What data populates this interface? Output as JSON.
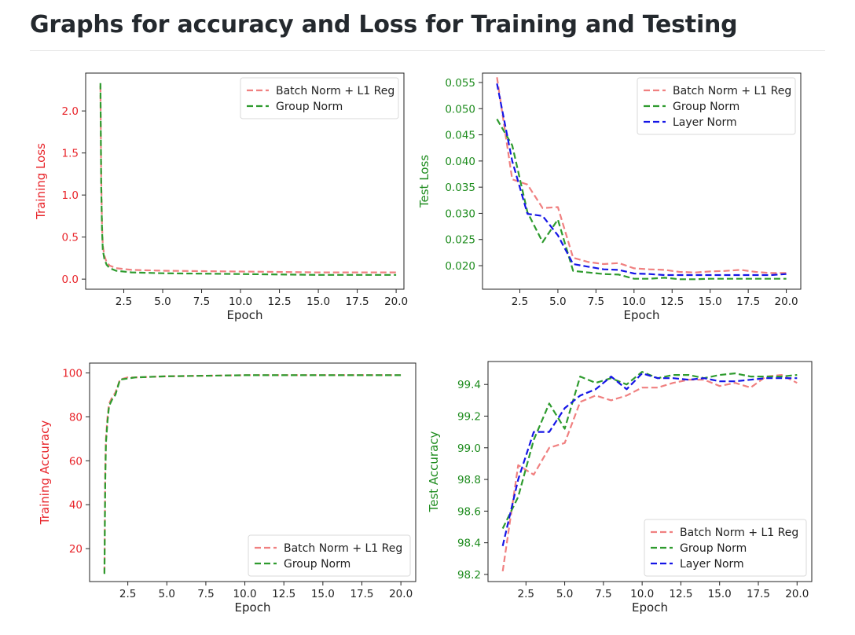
{
  "page": {
    "title": "Graphs for accuracy and Loss for Training and Testing"
  },
  "colors": {
    "batch_norm": "#f08080",
    "group_norm": "#2e9b2e",
    "layer_norm": "#1515e6",
    "train_tick": "#e8242a",
    "test_tick": "#1e8c1e"
  },
  "chart_data": [
    {
      "id": "training-loss",
      "type": "line",
      "xlabel": "Epoch",
      "ylabel": "Training Loss",
      "xlim": [
        0.05,
        20.5
      ],
      "ylim": [
        -0.12,
        2.45
      ],
      "xticks": [
        2.5,
        5.0,
        7.5,
        10.0,
        12.5,
        15.0,
        17.5,
        20.0
      ],
      "yticks": [
        0.0,
        0.5,
        1.0,
        1.5,
        2.0
      ],
      "tick_color": "#e8242a",
      "label_color": "#e8242a",
      "legend_position": "top-right",
      "series": [
        {
          "name": "Batch Norm + L1 Reg",
          "color": "#f08080",
          "x": [
            1.0,
            1.05,
            1.1,
            1.15,
            1.25,
            1.4,
            1.6,
            2.0,
            3.0,
            5.0,
            10.0,
            15.0,
            20.0
          ],
          "y": [
            2.3,
            1.2,
            0.65,
            0.4,
            0.28,
            0.2,
            0.16,
            0.13,
            0.11,
            0.1,
            0.09,
            0.08,
            0.08
          ]
        },
        {
          "name": "Group Norm",
          "color": "#2e9b2e",
          "x": [
            1.0,
            1.05,
            1.1,
            1.15,
            1.25,
            1.4,
            1.6,
            2.0,
            3.0,
            5.0,
            10.0,
            15.0,
            20.0
          ],
          "y": [
            2.33,
            1.1,
            0.6,
            0.35,
            0.24,
            0.17,
            0.13,
            0.1,
            0.08,
            0.07,
            0.06,
            0.05,
            0.05
          ]
        }
      ]
    },
    {
      "id": "test-loss",
      "type": "line",
      "xlabel": "Epoch",
      "ylabel": "Test Loss",
      "xlim": [
        0.05,
        20.95
      ],
      "ylim": [
        0.0155,
        0.0568
      ],
      "xticks": [
        2.5,
        5.0,
        7.5,
        10.0,
        12.5,
        15.0,
        17.5,
        20.0
      ],
      "yticks": [
        0.02,
        0.025,
        0.03,
        0.035,
        0.04,
        0.045,
        0.05,
        0.055
      ],
      "tick_color": "#1e8c1e",
      "label_color": "#1e8c1e",
      "legend_position": "top-right",
      "series": [
        {
          "name": "Batch Norm + L1 Reg",
          "color": "#f08080",
          "x": [
            1,
            2,
            3,
            4,
            5,
            6,
            7,
            8,
            9,
            10,
            11,
            12,
            13,
            14,
            15,
            16,
            17,
            18,
            19,
            20
          ],
          "y": [
            0.056,
            0.0365,
            0.0355,
            0.031,
            0.0312,
            0.0215,
            0.0207,
            0.0203,
            0.0205,
            0.0195,
            0.0193,
            0.0192,
            0.0188,
            0.0187,
            0.0189,
            0.019,
            0.0192,
            0.0188,
            0.0186,
            0.0186
          ]
        },
        {
          "name": "Group Norm",
          "color": "#2e9b2e",
          "x": [
            1,
            2,
            3,
            4,
            5,
            6,
            7,
            8,
            9,
            10,
            11,
            12,
            13,
            14,
            15,
            16,
            17,
            18,
            19,
            20
          ],
          "y": [
            0.048,
            0.043,
            0.0302,
            0.0245,
            0.0288,
            0.019,
            0.0187,
            0.0184,
            0.0183,
            0.0175,
            0.0175,
            0.0177,
            0.0174,
            0.0174,
            0.0175,
            0.0175,
            0.0175,
            0.0175,
            0.0175,
            0.0175
          ]
        },
        {
          "name": "Layer Norm",
          "color": "#1515e6",
          "x": [
            1,
            2,
            3,
            4,
            5,
            6,
            7,
            8,
            9,
            10,
            11,
            12,
            13,
            14,
            15,
            16,
            17,
            18,
            19,
            20
          ],
          "y": [
            0.0548,
            0.04,
            0.0299,
            0.0295,
            0.0258,
            0.0203,
            0.0198,
            0.0193,
            0.0192,
            0.0185,
            0.0184,
            0.0182,
            0.0182,
            0.0182,
            0.0182,
            0.0182,
            0.0182,
            0.0182,
            0.0182,
            0.0184
          ]
        }
      ]
    },
    {
      "id": "training-accuracy",
      "type": "line",
      "xlabel": "Epoch",
      "ylabel": "Training Accuracy",
      "xlim": [
        0.05,
        20.95
      ],
      "ylim": [
        5.0,
        104.5
      ],
      "xticks": [
        2.5,
        5.0,
        7.5,
        10.0,
        12.5,
        15.0,
        17.5,
        20.0
      ],
      "yticks": [
        20,
        40,
        60,
        80,
        100
      ],
      "tick_color": "#e8242a",
      "label_color": "#e8242a",
      "legend_position": "bottom-right",
      "series": [
        {
          "name": "Batch Norm + L1 Reg",
          "color": "#f08080",
          "x": [
            1.0,
            1.05,
            1.1,
            1.2,
            1.3,
            1.5,
            1.7,
            2.0,
            2.5,
            3.0,
            5.0,
            10.0,
            15.0,
            20.0
          ],
          "y": [
            9,
            55,
            70,
            80,
            86,
            89,
            91,
            97,
            98,
            98,
            98.5,
            99,
            99,
            99
          ]
        },
        {
          "name": "Group Norm",
          "color": "#2e9b2e",
          "x": [
            1.0,
            1.05,
            1.1,
            1.2,
            1.3,
            1.5,
            1.7,
            2.0,
            2.5,
            3.0,
            5.0,
            10.0,
            15.0,
            20.0
          ],
          "y": [
            8.5,
            50,
            68,
            78,
            85,
            88,
            90,
            97,
            97.5,
            98,
            98.5,
            99,
            99,
            99
          ]
        }
      ]
    },
    {
      "id": "test-accuracy",
      "type": "line",
      "xlabel": "Epoch",
      "ylabel": "Test Accuracy",
      "xlim": [
        0.05,
        20.95
      ],
      "ylim": [
        98.155,
        99.545
      ],
      "xticks": [
        2.5,
        5.0,
        7.5,
        10.0,
        12.5,
        15.0,
        17.5,
        20.0
      ],
      "yticks": [
        98.2,
        98.4,
        98.6,
        98.8,
        99.0,
        99.2,
        99.4
      ],
      "tick_color": "#1e8c1e",
      "label_color": "#1e8c1e",
      "legend_position": "bottom-right",
      "series": [
        {
          "name": "Batch Norm + L1 Reg",
          "color": "#f08080",
          "x": [
            1,
            2,
            3,
            4,
            5,
            6,
            7,
            8,
            9,
            10,
            11,
            12,
            13,
            14,
            15,
            16,
            17,
            18,
            19,
            20
          ],
          "y": [
            98.22,
            98.89,
            98.83,
            99.0,
            99.03,
            99.29,
            99.33,
            99.3,
            99.33,
            99.38,
            99.38,
            99.41,
            99.43,
            99.43,
            99.39,
            99.41,
            99.38,
            99.45,
            99.46,
            99.41
          ]
        },
        {
          "name": "Group Norm",
          "color": "#2e9b2e",
          "x": [
            1,
            2,
            3,
            4,
            5,
            6,
            7,
            8,
            9,
            10,
            11,
            12,
            13,
            14,
            15,
            16,
            17,
            18,
            19,
            20
          ],
          "y": [
            98.49,
            98.69,
            99.05,
            99.28,
            99.12,
            99.45,
            99.41,
            99.44,
            99.4,
            99.48,
            99.44,
            99.46,
            99.46,
            99.44,
            99.46,
            99.47,
            99.45,
            99.45,
            99.45,
            99.46
          ]
        },
        {
          "name": "Layer Norm",
          "color": "#1515e6",
          "x": [
            1,
            2,
            3,
            4,
            5,
            6,
            7,
            8,
            9,
            10,
            11,
            12,
            13,
            14,
            15,
            16,
            17,
            18,
            19,
            20
          ],
          "y": [
            98.38,
            98.8,
            99.1,
            99.1,
            99.25,
            99.33,
            99.37,
            99.45,
            99.37,
            99.47,
            99.44,
            99.44,
            99.43,
            99.44,
            99.42,
            99.42,
            99.43,
            99.44,
            99.44,
            99.44
          ]
        }
      ]
    }
  ]
}
